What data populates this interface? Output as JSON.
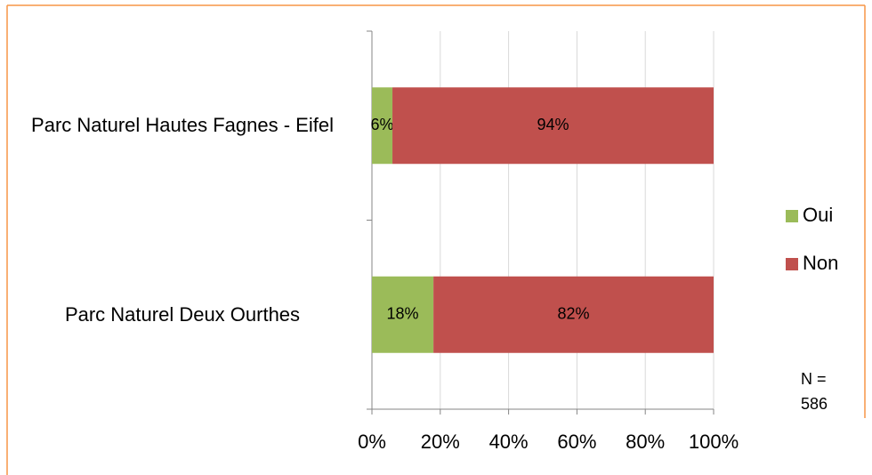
{
  "chart_data": {
    "type": "stacked_bar_horizontal",
    "categories": [
      "Parc Naturel Hautes Fagnes - Eifel",
      "Parc Naturel Deux Ourthes"
    ],
    "series": [
      {
        "name": "Oui",
        "color": "#9bbb59",
        "values": [
          6,
          18
        ],
        "value_labels": [
          "6%",
          "18%"
        ]
      },
      {
        "name": "Non",
        "color": "#c0504d",
        "values": [
          94,
          82
        ],
        "value_labels": [
          "94%",
          "82%"
        ]
      }
    ],
    "xlim": [
      0,
      100
    ],
    "xticks": [
      {
        "value": 0,
        "label": "0%"
      },
      {
        "value": 20,
        "label": "20%"
      },
      {
        "value": 40,
        "label": "40%"
      },
      {
        "value": 60,
        "label": "60%"
      },
      {
        "value": 80,
        "label": "80%"
      },
      {
        "value": 100,
        "label": "100%"
      }
    ],
    "grid": true,
    "legend": "right",
    "annotations": [
      "N = 586"
    ]
  }
}
